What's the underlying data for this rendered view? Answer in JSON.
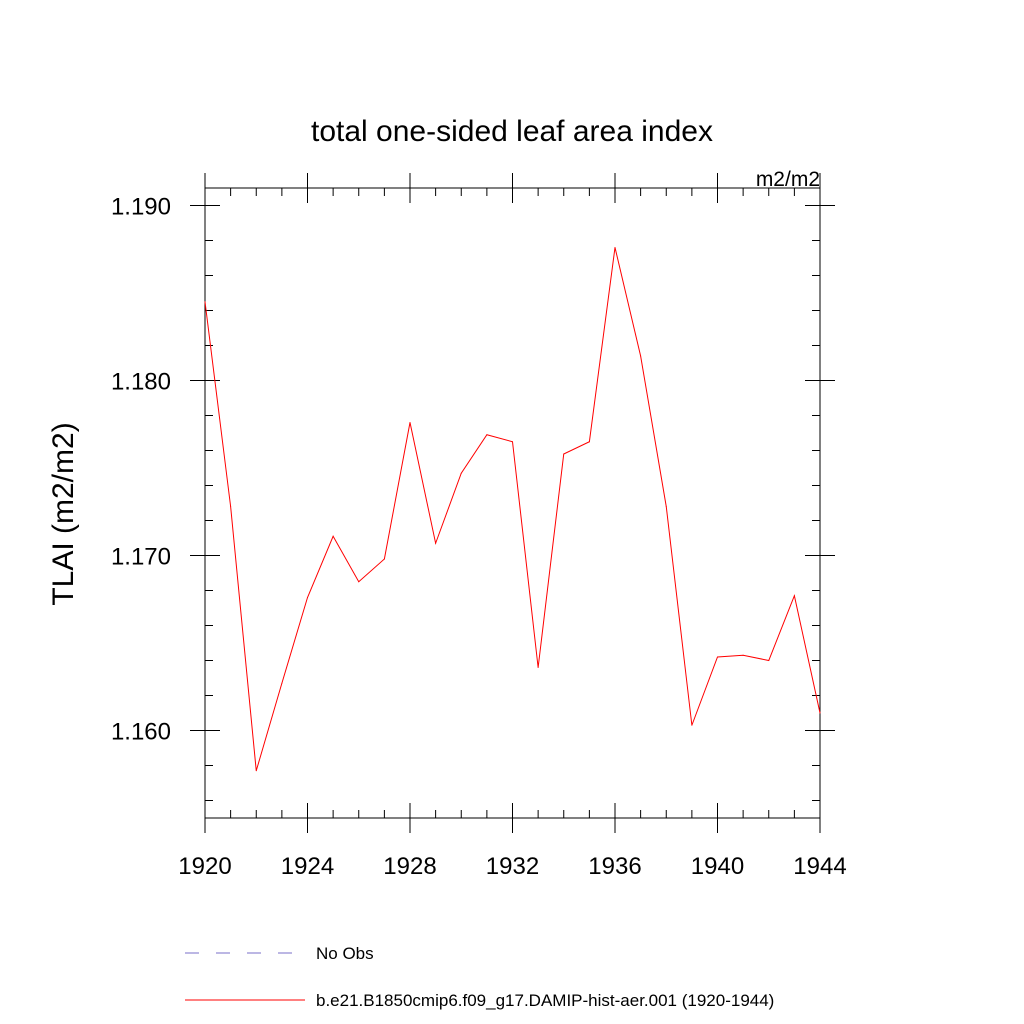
{
  "chart_data": {
    "type": "line",
    "title": "total one-sided leaf area index",
    "units_label": "m2/m2",
    "ylabel": "TLAI  (m2/m2)",
    "xlabel": "",
    "xlim": [
      1920,
      1944
    ],
    "ylim": [
      1.155,
      1.191
    ],
    "x_ticks": [
      "1920",
      "1924",
      "1928",
      "1932",
      "1936",
      "1940",
      "1944"
    ],
    "y_ticks": [
      "1.160",
      "1.170",
      "1.180",
      "1.190"
    ],
    "grid": false,
    "legend_position": "bottom-left",
    "x": [
      1920,
      1921,
      1922,
      1923,
      1924,
      1925,
      1926,
      1927,
      1928,
      1929,
      1930,
      1931,
      1932,
      1933,
      1934,
      1935,
      1936,
      1937,
      1938,
      1939,
      1940,
      1941,
      1942,
      1943,
      1944
    ],
    "series": [
      {
        "name": "b.e21.B1850cmip6.f09_g17.DAMIP-hist-aer.001 (1920-1944)",
        "color": "#ff0000",
        "style": "solid",
        "values": [
          1.1845,
          1.1728,
          1.1577,
          1.1627,
          1.1676,
          1.1711,
          1.1685,
          1.1698,
          1.1776,
          1.1707,
          1.1747,
          1.1769,
          1.1765,
          1.1636,
          1.1758,
          1.1765,
          1.1876,
          1.1814,
          1.1728,
          1.1603,
          1.1642,
          1.1643,
          1.164,
          1.1677,
          1.161
        ]
      }
    ],
    "legend": [
      {
        "label": "No Obs",
        "color": "#7a6fc8",
        "style": "dashed"
      },
      {
        "label": "b.e21.B1850cmip6.f09_g17.DAMIP-hist-aer.001 (1920-1944)",
        "color": "#ff0000",
        "style": "solid"
      }
    ]
  }
}
